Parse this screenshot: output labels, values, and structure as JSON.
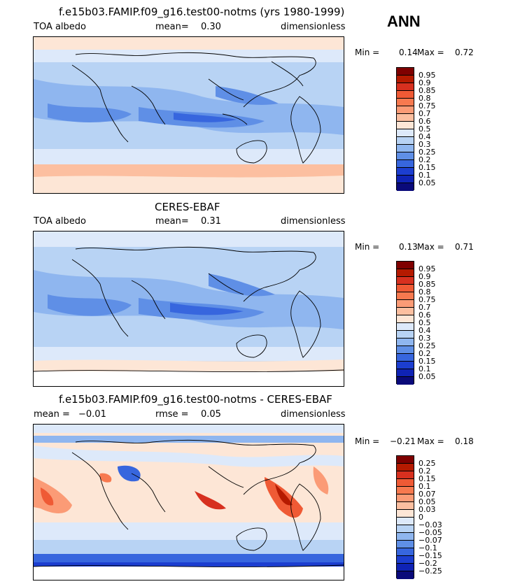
{
  "season": "ANN",
  "panels": [
    {
      "title": "f.e15b03.FAMIP.f09_g16.test00-notms (yrs 1980-1999)",
      "left_label": "TOA albedo",
      "center_label": "mean=",
      "center_value": "0.30",
      "right_label": "dimensionless",
      "min_label": "Min =",
      "min_value": "0.14",
      "max_label": "Max =",
      "max_value": "0.72",
      "colorbar": {
        "labels": [
          "0.95",
          "0.9",
          "0.85",
          "0.8",
          "0.75",
          "0.7",
          "0.6",
          "0.5",
          "0.4",
          "0.3",
          "0.25",
          "0.2",
          "0.15",
          "0.1",
          "0.05"
        ],
        "colors": [
          "#7f0000",
          "#b51a00",
          "#d7301f",
          "#ef5a35",
          "#f7794f",
          "#fb9b76",
          "#fcbfa0",
          "#fde6d6",
          "#dde9fa",
          "#b8d3f4",
          "#8fb6ef",
          "#5f8fe6",
          "#3766de",
          "#1c3ed0",
          "#0f23b5",
          "#0a0a7a"
        ]
      }
    },
    {
      "title": "CERES-EBAF",
      "left_label": "TOA albedo",
      "center_label": "mean=",
      "center_value": "0.31",
      "right_label": "dimensionless",
      "min_label": "Min =",
      "min_value": "0.13",
      "max_label": "Max =",
      "max_value": "0.71",
      "colorbar": {
        "labels": [
          "0.95",
          "0.9",
          "0.85",
          "0.8",
          "0.75",
          "0.7",
          "0.6",
          "0.5",
          "0.4",
          "0.3",
          "0.25",
          "0.2",
          "0.15",
          "0.1",
          "0.05"
        ],
        "colors": [
          "#7f0000",
          "#b51a00",
          "#d7301f",
          "#ef5a35",
          "#f7794f",
          "#fb9b76",
          "#fcbfa0",
          "#fde6d6",
          "#dde9fa",
          "#b8d3f4",
          "#8fb6ef",
          "#5f8fe6",
          "#3766de",
          "#1c3ed0",
          "#0f23b5",
          "#0a0a7a"
        ]
      }
    },
    {
      "title": "f.e15b03.FAMIP.f09_g16.test00-notms - CERES-EBAF",
      "left_label": "mean =",
      "left_value": "−0.01",
      "center_label": "rmse =",
      "center_value": "0.05",
      "right_label": "dimensionless",
      "min_label": "Min =",
      "min_value": "−0.21",
      "max_label": "Max =",
      "max_value": "0.18",
      "colorbar": {
        "labels": [
          "0.25",
          "0.2",
          "0.15",
          "0.1",
          "0.07",
          "0.05",
          "0.03",
          "0",
          "−0.03",
          "−0.05",
          "−0.07",
          "−0.1",
          "−0.15",
          "−0.2",
          "−0.25"
        ],
        "colors": [
          "#7f0000",
          "#b51a00",
          "#d7301f",
          "#ef5a35",
          "#f7794f",
          "#fb9b76",
          "#fcbfa0",
          "#fde6d6",
          "#dde9fa",
          "#b8d3f4",
          "#8fb6ef",
          "#5f8fe6",
          "#3766de",
          "#1c3ed0",
          "#0f23b5",
          "#0a0a7a"
        ]
      }
    }
  ]
}
